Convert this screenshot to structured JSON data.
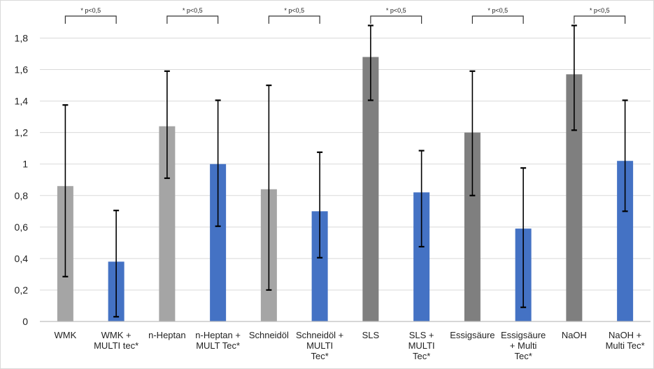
{
  "chart_data": {
    "type": "bar",
    "title": "",
    "xlabel": "",
    "ylabel": "",
    "ylim": [
      0,
      1.9
    ],
    "y_ticks": [
      "0",
      "0,2",
      "0,4",
      "0,6",
      "0,8",
      "1",
      "1,2",
      "1,4",
      "1,6",
      "1,8"
    ],
    "grid": true,
    "legend": "none",
    "categories": [
      [
        "WMK"
      ],
      [
        "WMK +",
        "MULTI tec*"
      ],
      [
        "n-Heptan"
      ],
      [
        "n-Heptan +",
        "MULT Tec*"
      ],
      [
        "Schneidöl"
      ],
      [
        "Schneidöl +",
        "MULTI",
        "Tec*"
      ],
      [
        "SLS"
      ],
      [
        "SLS +",
        "MULTI",
        "Tec*"
      ],
      [
        "Essigsäure"
      ],
      [
        "Essigsäure",
        "+ Multi",
        "Tec*"
      ],
      [
        "NaOH"
      ],
      [
        "NaOH +",
        "Multi Tec*"
      ]
    ],
    "values": [
      0.86,
      0.38,
      1.24,
      1.0,
      0.84,
      0.7,
      1.68,
      0.82,
      1.2,
      0.59,
      1.57,
      1.02
    ],
    "error_low": [
      0.285,
      0.03,
      0.91,
      0.605,
      0.2,
      0.405,
      1.405,
      0.475,
      0.8,
      0.09,
      1.215,
      0.7
    ],
    "error_high": [
      1.375,
      0.705,
      1.59,
      1.405,
      1.5,
      1.075,
      1.88,
      1.085,
      1.59,
      0.975,
      1.88,
      1.405
    ],
    "bar_colors": [
      "#a5a5a5",
      "#4472c4",
      "#a5a5a5",
      "#4472c4",
      "#a5a5a5",
      "#4472c4",
      "#7f7f7f",
      "#4472c4",
      "#7f7f7f",
      "#4472c4",
      "#7f7f7f",
      "#4472c4"
    ],
    "significance": [
      {
        "pair": [
          0,
          1
        ],
        "label": "* p<0,5"
      },
      {
        "pair": [
          2,
          3
        ],
        "label": "* p<0,5"
      },
      {
        "pair": [
          4,
          5
        ],
        "label": "* p<0,5"
      },
      {
        "pair": [
          6,
          7
        ],
        "label": "* p<0,5"
      },
      {
        "pair": [
          8,
          9
        ],
        "label": "* p<0,5"
      },
      {
        "pair": [
          10,
          11
        ],
        "label": "* p<0,5"
      }
    ]
  }
}
